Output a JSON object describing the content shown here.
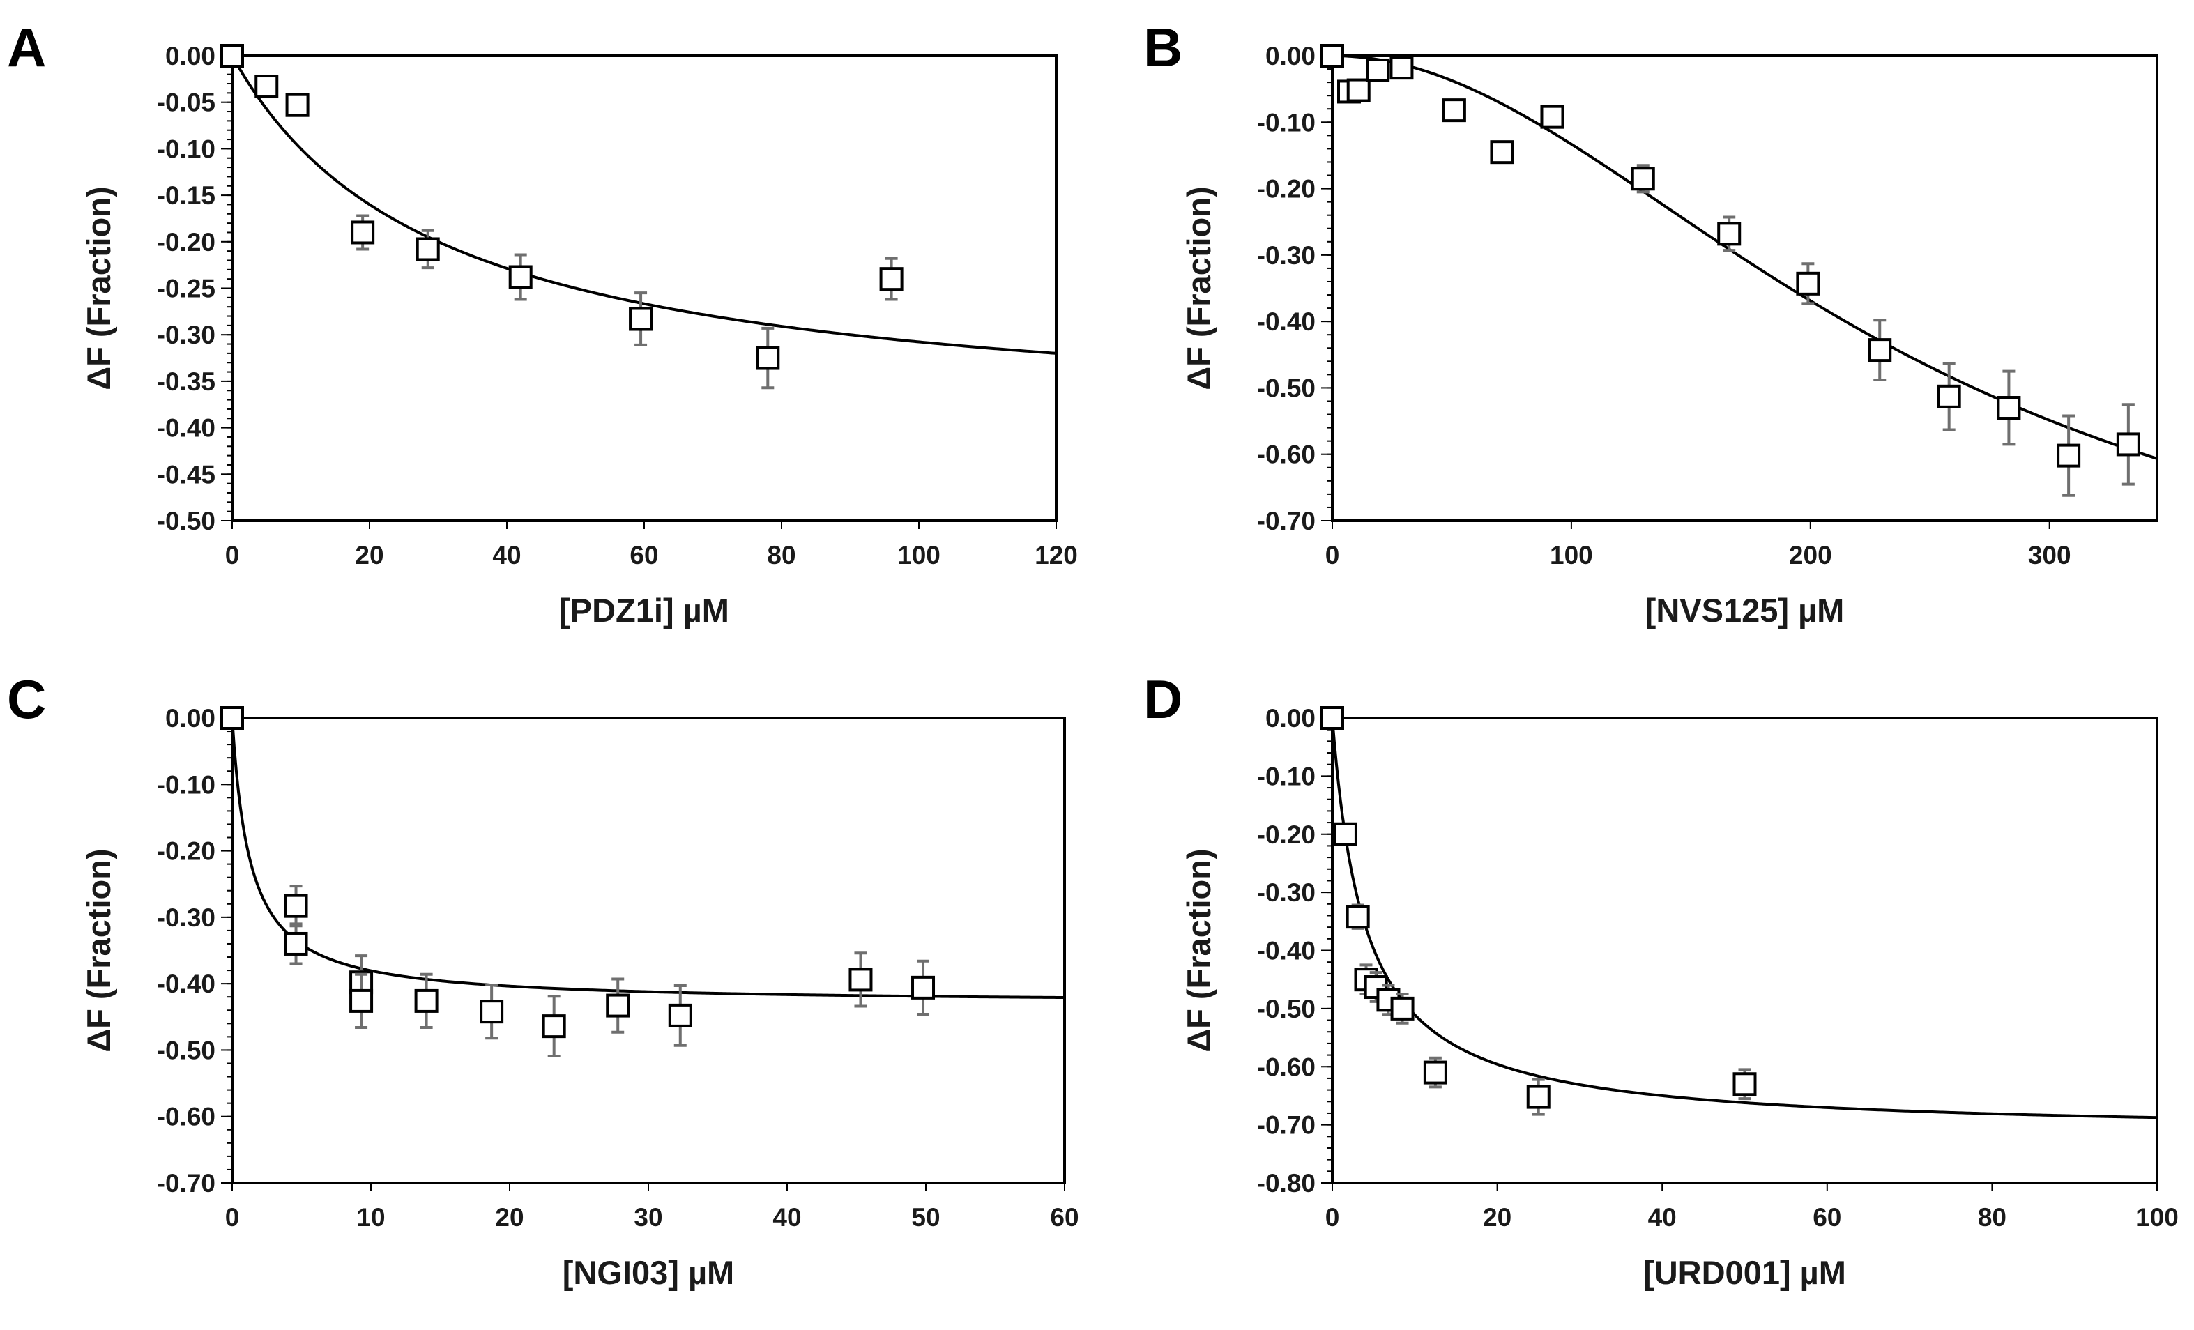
{
  "chart_data": [
    {
      "panel": "A",
      "type": "scatter",
      "xlabel": "[PDZ1i]    µM",
      "ylabel": "ΔF (Fraction)",
      "xlim": [
        0,
        120
      ],
      "ylim": [
        -0.5,
        0.0
      ],
      "x_ticks": [
        0,
        20,
        40,
        60,
        80,
        100,
        120
      ],
      "x_tick_labels": [
        "0",
        "20",
        "40",
        "60",
        "80",
        "100",
        "120"
      ],
      "y_ticks": [
        0.0,
        -0.05,
        -0.1,
        -0.15,
        -0.2,
        -0.25,
        -0.3,
        -0.35,
        -0.4,
        -0.45,
        -0.5
      ],
      "y_tick_labels": [
        "0.00",
        "-0.05",
        "-0.10",
        "-0.15",
        "-0.20",
        "-0.25",
        "-0.30",
        "-0.35",
        "-0.40",
        "-0.45",
        "-0.50"
      ],
      "y_minor_step": 0.01,
      "x": [
        0,
        5,
        9.5,
        19,
        28.5,
        42,
        59.5,
        78,
        96
      ],
      "y": [
        0.0,
        -0.033,
        -0.053,
        -0.19,
        -0.208,
        -0.238,
        -0.283,
        -0.325,
        -0.24
      ],
      "yerr": [
        0.0,
        0.006,
        0.007,
        0.018,
        0.02,
        0.024,
        0.028,
        0.032,
        0.022
      ],
      "fit": {
        "model": "hyperbolic",
        "amplitude": -0.4,
        "k": 30
      }
    },
    {
      "panel": "B",
      "type": "scatter",
      "xlabel": "[NVS125]    µM",
      "ylabel": "ΔF (Fraction)",
      "xlim": [
        0,
        345
      ],
      "ylim": [
        -0.7,
        0.0
      ],
      "x_ticks": [
        0,
        100,
        200,
        300
      ],
      "x_tick_labels": [
        "0",
        "100",
        "200",
        "300"
      ],
      "y_ticks": [
        0.0,
        -0.1,
        -0.2,
        -0.3,
        -0.4,
        -0.5,
        -0.6,
        -0.7
      ],
      "y_tick_labels": [
        "0.00",
        "-0.10",
        "-0.20",
        "-0.30",
        "-0.40",
        "-0.50",
        "-0.60",
        "-0.70"
      ],
      "y_minor_step": 0.02,
      "x": [
        0,
        7,
        11,
        19,
        29,
        51,
        71,
        92,
        130,
        166,
        199,
        229,
        258,
        283,
        308,
        333
      ],
      "y": [
        0.0,
        -0.054,
        -0.052,
        -0.022,
        -0.018,
        -0.082,
        -0.145,
        -0.092,
        -0.185,
        -0.268,
        -0.343,
        -0.443,
        -0.513,
        -0.53,
        -0.602,
        -0.585
      ],
      "yerr": [
        0.0,
        0.012,
        0.012,
        0.012,
        0.012,
        0.015,
        0.015,
        0.015,
        0.02,
        0.025,
        0.03,
        0.045,
        0.05,
        0.055,
        0.06,
        0.06
      ],
      "fit": {
        "model": "sigmoid",
        "amplitude": -0.9,
        "ec50": 240,
        "hill": 2.0
      }
    },
    {
      "panel": "C",
      "type": "scatter",
      "xlabel": "[NGI03]    µM",
      "ylabel": "ΔF (Fraction)",
      "xlim": [
        0,
        60
      ],
      "ylim": [
        -0.7,
        0.0
      ],
      "x_ticks": [
        0,
        10,
        20,
        30,
        40,
        50,
        60
      ],
      "x_tick_labels": [
        "0",
        "10",
        "20",
        "30",
        "40",
        "50",
        "60"
      ],
      "y_ticks": [
        0.0,
        -0.1,
        -0.2,
        -0.3,
        -0.4,
        -0.5,
        -0.6,
        -0.7
      ],
      "y_tick_labels": [
        "0.00",
        "-0.10",
        "-0.20",
        "-0.30",
        "-0.40",
        "-0.50",
        "-0.60",
        "-0.70"
      ],
      "y_minor_step": 0.02,
      "x": [
        0,
        4.6,
        4.6,
        9.3,
        9.3,
        14,
        18.7,
        23.2,
        27.8,
        32.3,
        45.3,
        49.8
      ],
      "y": [
        0.0,
        -0.283,
        -0.34,
        -0.398,
        -0.426,
        -0.426,
        -0.442,
        -0.464,
        -0.433,
        -0.448,
        -0.394,
        -0.406
      ],
      "yerr": [
        0.0,
        0.03,
        0.03,
        0.04,
        0.04,
        0.04,
        0.04,
        0.045,
        0.04,
        0.045,
        0.04,
        0.04
      ],
      "fit": {
        "model": "hyperbolic",
        "amplitude": -0.43,
        "k": 1.3
      }
    },
    {
      "panel": "D",
      "type": "scatter",
      "xlabel": "[URD001]    µM",
      "ylabel": "ΔF (Fraction)",
      "xlim": [
        0,
        100
      ],
      "ylim": [
        -0.8,
        0.0
      ],
      "x_ticks": [
        0,
        20,
        40,
        60,
        80,
        100
      ],
      "x_tick_labels": [
        "0",
        "20",
        "40",
        "60",
        "80",
        "100"
      ],
      "y_ticks": [
        0.0,
        -0.1,
        -0.2,
        -0.3,
        -0.4,
        -0.5,
        -0.6,
        -0.7,
        -0.8
      ],
      "y_tick_labels": [
        "0.00",
        "-0.10",
        "-0.20",
        "-0.30",
        "-0.40",
        "-0.50",
        "-0.60",
        "-0.70",
        "-0.80"
      ],
      "y_minor_step": 0.02,
      "x": [
        0,
        1.6,
        3.1,
        4.1,
        5.3,
        6.8,
        8.5,
        12.5,
        25,
        50
      ],
      "y": [
        0.0,
        -0.2,
        -0.342,
        -0.45,
        -0.463,
        -0.485,
        -0.5,
        -0.61,
        -0.652,
        -0.63
      ],
      "yerr": [
        0.0,
        0.015,
        0.02,
        0.025,
        0.025,
        0.025,
        0.025,
        0.025,
        0.03,
        0.025
      ],
      "fit": {
        "model": "hyperbolic",
        "amplitude": -0.715,
        "k": 4.0
      }
    }
  ]
}
